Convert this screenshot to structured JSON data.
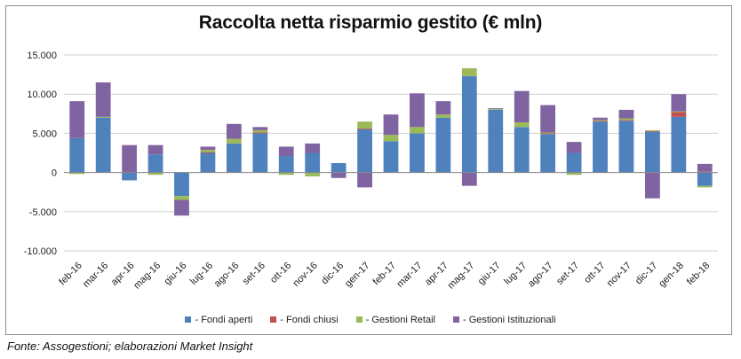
{
  "source_note": "Fonte: Assogestioni; elaborazioni Market Insight",
  "chart_data": {
    "type": "bar",
    "stacked": true,
    "title": "Raccolta netta risparmio gestito (€ mln)",
    "xlabel": "",
    "ylabel": "",
    "ylim": [
      -10000,
      15000
    ],
    "yticks": [
      15000,
      10000,
      5000,
      0,
      -5000,
      -10000
    ],
    "ytick_labels": [
      "15.000",
      "10.000",
      "5.000",
      "0",
      "-5.000",
      "-10.000"
    ],
    "grid": true,
    "legend_position": "bottom",
    "categories": [
      "feb-16",
      "mar-16",
      "apr-16",
      "mag-16",
      "giu-16",
      "lug-16",
      "ago-16",
      "set-16",
      "ott-16",
      "nov-16",
      "dic-16",
      "gen-17",
      "feb-17",
      "mar-17",
      "apr-17",
      "mag-17",
      "giu-17",
      "lug-17",
      "ago-17",
      "set-17",
      "ott-17",
      "nov-17",
      "dic-17",
      "gen-18",
      "feb-18"
    ],
    "series": [
      {
        "name": "- Fondi aperti",
        "color": "#4f81bd",
        "values": [
          4400,
          7000,
          -1000,
          2300,
          -3000,
          2500,
          3700,
          5000,
          2100,
          2500,
          1200,
          5500,
          4000,
          5000,
          7000,
          12300,
          8000,
          5800,
          4900,
          2500,
          6500,
          6600,
          5200,
          7100,
          -1700
        ]
      },
      {
        "name": "- Fondi chiusi",
        "color": "#c0504d",
        "values": [
          0,
          0,
          0,
          0,
          0,
          100,
          0,
          100,
          0,
          0,
          0,
          100,
          0,
          0,
          0,
          0,
          0,
          0,
          100,
          0,
          100,
          100,
          100,
          600,
          100
        ]
      },
      {
        "name": "- Gestioni Retail",
        "color": "#9bbb59",
        "values": [
          -200,
          100,
          0,
          -300,
          -500,
          300,
          600,
          300,
          -300,
          -500,
          0,
          900,
          800,
          800,
          400,
          1000,
          100,
          600,
          100,
          -300,
          100,
          200,
          100,
          100,
          -200
        ]
      },
      {
        "name": "- Gestioni Istituzionali",
        "color": "#8064a2",
        "values": [
          4700,
          4400,
          3500,
          1200,
          -2000,
          400,
          1900,
          400,
          1200,
          1200,
          -700,
          -1900,
          2600,
          4300,
          1700,
          -1700,
          100,
          4000,
          3500,
          1400,
          300,
          1100,
          -3300,
          2200,
          1000
        ]
      }
    ]
  }
}
